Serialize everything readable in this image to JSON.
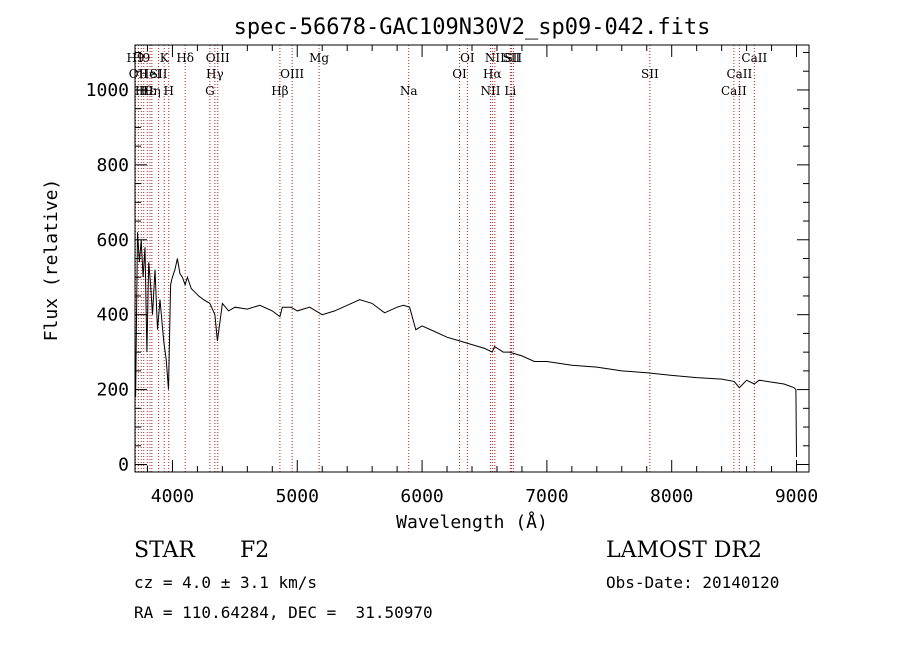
{
  "chart_data": {
    "type": "line",
    "title": "spec-56678-GAC109N30V2_sp09-042.fits",
    "xlabel": "Wavelength (Å)",
    "ylabel": "Flux (relative)",
    "xlim": [
      3700,
      9100
    ],
    "ylim": [
      -20,
      1120
    ],
    "xticks": [
      4000,
      5000,
      6000,
      7000,
      8000,
      9000
    ],
    "yticks": [
      0,
      200,
      400,
      600,
      800,
      1000
    ],
    "grid": false,
    "colors": {
      "spectrum": "#000000",
      "lines": "#b22222"
    },
    "series": [
      {
        "x": [
          3705,
          3720,
          3735,
          3750,
          3765,
          3780,
          3795,
          3810,
          3825,
          3840,
          3860,
          3880,
          3900,
          3930,
          3950,
          3968,
          3985,
          4000,
          4020,
          4040,
          4060,
          4080,
          4101,
          4120,
          4150,
          4180,
          4210,
          4250,
          4300,
          4340,
          4360,
          4400,
          4450,
          4500,
          4600,
          4700,
          4800,
          4861,
          4880,
          4950,
          5000,
          5100,
          5200,
          5300,
          5400,
          5500,
          5600,
          5700,
          5800,
          5850,
          5900,
          5950,
          6000,
          6100,
          6200,
          6300,
          6400,
          6500,
          6563,
          6580,
          6650,
          6700,
          6800,
          6900,
          7000,
          7200,
          7400,
          7600,
          7800,
          8000,
          8200,
          8400,
          8500,
          8542,
          8600,
          8662,
          8700,
          8800,
          8900,
          8980,
          8995,
          9000
        ],
        "y": [
          180,
          620,
          540,
          600,
          500,
          580,
          300,
          540,
          480,
          400,
          520,
          360,
          440,
          330,
          280,
          200,
          480,
          500,
          520,
          550,
          510,
          500,
          480,
          500,
          470,
          460,
          450,
          440,
          430,
          400,
          330,
          430,
          410,
          420,
          415,
          425,
          410,
          395,
          420,
          420,
          410,
          420,
          400,
          410,
          425,
          440,
          430,
          405,
          420,
          425,
          420,
          360,
          370,
          355,
          340,
          330,
          320,
          310,
          300,
          315,
          300,
          300,
          290,
          275,
          275,
          265,
          260,
          250,
          245,
          238,
          232,
          228,
          222,
          205,
          225,
          215,
          225,
          220,
          215,
          205,
          200,
          20
        ]
      }
    ],
    "line_markers": [
      {
        "wl": 3704,
        "label": "H9",
        "row": 1
      },
      {
        "wl": 3727,
        "label": "OII",
        "row": 2
      },
      {
        "wl": 3750,
        "label": "H9",
        "row": 1
      },
      {
        "wl": 3770,
        "label": "Hθ",
        "row": 3
      },
      {
        "wl": 3798,
        "label": "Hε",
        "row": 3
      },
      {
        "wl": 3820,
        "label": "HeI",
        "row": 2
      },
      {
        "wl": 3835,
        "label": "Hη",
        "row": 3
      },
      {
        "wl": 3889,
        "label": "SII",
        "row": 2
      },
      {
        "wl": 3934,
        "label": "K",
        "row": 1
      },
      {
        "wl": 3970,
        "label": "H",
        "row": 3
      },
      {
        "wl": 4102,
        "label": "Hδ",
        "row": 1
      },
      {
        "wl": 4300,
        "label": "G",
        "row": 3
      },
      {
        "wl": 4340,
        "label": "Hγ",
        "row": 2
      },
      {
        "wl": 4363,
        "label": "OIII",
        "row": 1
      },
      {
        "wl": 4861,
        "label": "Hβ",
        "row": 3
      },
      {
        "wl": 4959,
        "label": "OIII",
        "row": 2
      },
      {
        "wl": 5175,
        "label": "Mg",
        "row": 1
      },
      {
        "wl": 5893,
        "label": "Na",
        "row": 3
      },
      {
        "wl": 6300,
        "label": "OI",
        "row": 2
      },
      {
        "wl": 6363,
        "label": "OI",
        "row": 1
      },
      {
        "wl": 6548,
        "label": "NII",
        "row": 3
      },
      {
        "wl": 6563,
        "label": "Hα",
        "row": 2
      },
      {
        "wl": 6583,
        "label": "NII",
        "row": 1
      },
      {
        "wl": 6707,
        "label": "Li",
        "row": 3
      },
      {
        "wl": 6716,
        "label": "SII",
        "row": 1
      },
      {
        "wl": 6731,
        "label": "SII",
        "row": 1
      },
      {
        "wl": 7825,
        "label": "SII",
        "row": 2
      },
      {
        "wl": 8498,
        "label": "CaII",
        "row": 3
      },
      {
        "wl": 8542,
        "label": "CaII",
        "row": 2
      },
      {
        "wl": 8662,
        "label": "CaII",
        "row": 1
      }
    ]
  },
  "info": {
    "class": "STAR",
    "subclass": "F2",
    "cz": "cz = 4.0 ± 3.1 km/s",
    "radec": "RA = 110.64284, DEC =  31.50970",
    "survey": "LAMOST DR2",
    "obsdate": "Obs-Date: 20140120"
  }
}
